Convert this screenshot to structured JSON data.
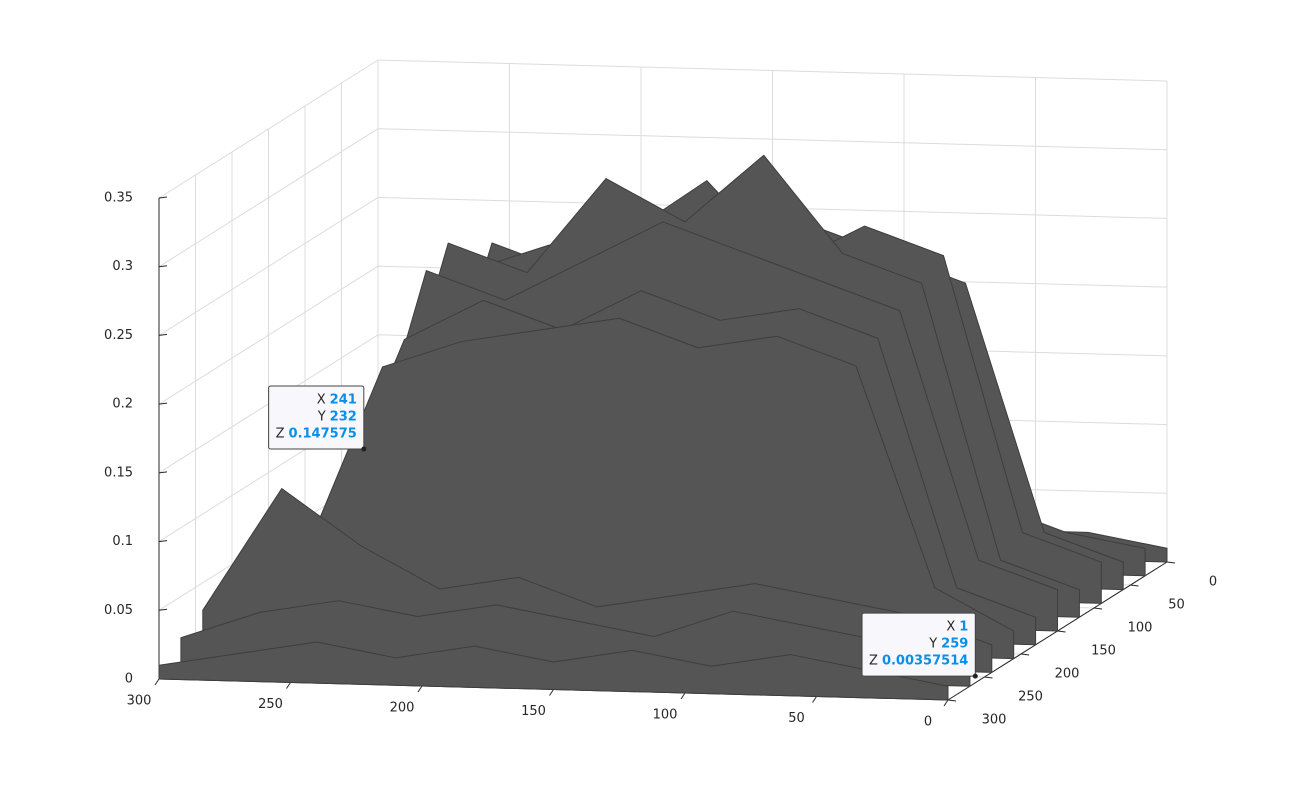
{
  "chart_data": {
    "type": "surface",
    "x": [
      0,
      30,
      60,
      90,
      120,
      150,
      180,
      210,
      240,
      270,
      300
    ],
    "y": [
      0,
      30,
      60,
      90,
      120,
      150,
      180,
      210,
      240,
      270,
      300
    ],
    "z": [
      [
        0.01,
        0.02,
        0.02,
        0.03,
        0.02,
        0.03,
        0.02,
        0.03,
        0.02,
        0.02,
        0.01
      ],
      [
        0.02,
        0.03,
        0.05,
        0.04,
        0.05,
        0.04,
        0.06,
        0.05,
        0.04,
        0.03,
        0.02
      ],
      [
        0.02,
        0.04,
        0.22,
        0.24,
        0.26,
        0.23,
        0.25,
        0.22,
        0.24,
        0.05,
        0.03
      ],
      [
        0.03,
        0.05,
        0.25,
        0.27,
        0.24,
        0.3,
        0.26,
        0.25,
        0.23,
        0.04,
        0.03
      ],
      [
        0.02,
        0.04,
        0.24,
        0.26,
        0.33,
        0.28,
        0.31,
        0.24,
        0.26,
        0.06,
        0.04
      ],
      [
        0.03,
        0.05,
        0.23,
        0.25,
        0.27,
        0.29,
        0.26,
        0.23,
        0.25,
        0.05,
        0.03
      ],
      [
        0.02,
        0.04,
        0.22,
        0.24,
        0.23,
        0.25,
        0.22,
        0.24,
        0.21,
        0.07,
        0.04
      ],
      [
        0.02,
        0.05,
        0.21,
        0.23,
        0.22,
        0.24,
        0.23,
        0.22,
        0.2,
        0.06,
        0.03
      ],
      [
        0.02,
        0.04,
        0.05,
        0.06,
        0.05,
        0.04,
        0.06,
        0.05,
        0.08,
        0.12,
        0.03
      ],
      [
        0.01,
        0.03,
        0.04,
        0.05,
        0.03,
        0.04,
        0.05,
        0.04,
        0.05,
        0.04,
        0.02
      ],
      [
        0.01,
        0.02,
        0.03,
        0.02,
        0.03,
        0.02,
        0.03,
        0.02,
        0.03,
        0.02,
        0.01
      ]
    ],
    "color": "#555555",
    "xlim": [
      0,
      300
    ],
    "ylim": [
      0,
      300
    ],
    "zlim": [
      0,
      0.35
    ],
    "xticks": [
      0,
      50,
      100,
      150,
      200,
      250,
      300
    ],
    "yticks": [
      0,
      50,
      100,
      150,
      200,
      250,
      300
    ],
    "zticks": [
      0,
      0.05,
      0.1,
      0.15,
      0.2,
      0.25,
      0.3,
      0.35
    ],
    "grid": true,
    "datatips": [
      {
        "x_label": "X",
        "x": 241,
        "y_label": "Y",
        "y": 232,
        "z_label": "Z",
        "z": 0.147575
      },
      {
        "x_label": "X",
        "x": 1,
        "y_label": "Y",
        "y": 259,
        "z_label": "Z",
        "z": 0.00357514
      }
    ]
  }
}
